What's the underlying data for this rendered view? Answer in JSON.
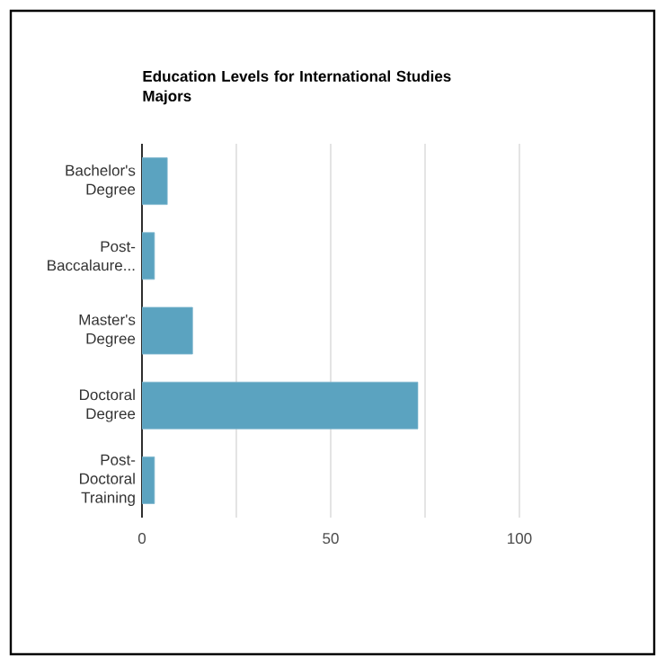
{
  "chart_data": {
    "type": "bar",
    "orientation": "horizontal",
    "title": "Education Levels for International Studies Majors",
    "categories": [
      "Bachelor's Degree",
      "Post-Baccalaure...",
      "Master's Degree",
      "Doctoral Degree",
      "Post-Doctoral Training"
    ],
    "values": [
      6.7,
      3.3,
      13.4,
      73.1,
      3.3
    ],
    "color": "#5ba3c0",
    "xlim": [
      0,
      100
    ],
    "xticks": [
      0,
      {
        "value": 25,
        "label": null
      },
      50,
      {
        "value": 75,
        "label": null
      },
      100
    ],
    "grid": "x"
  }
}
